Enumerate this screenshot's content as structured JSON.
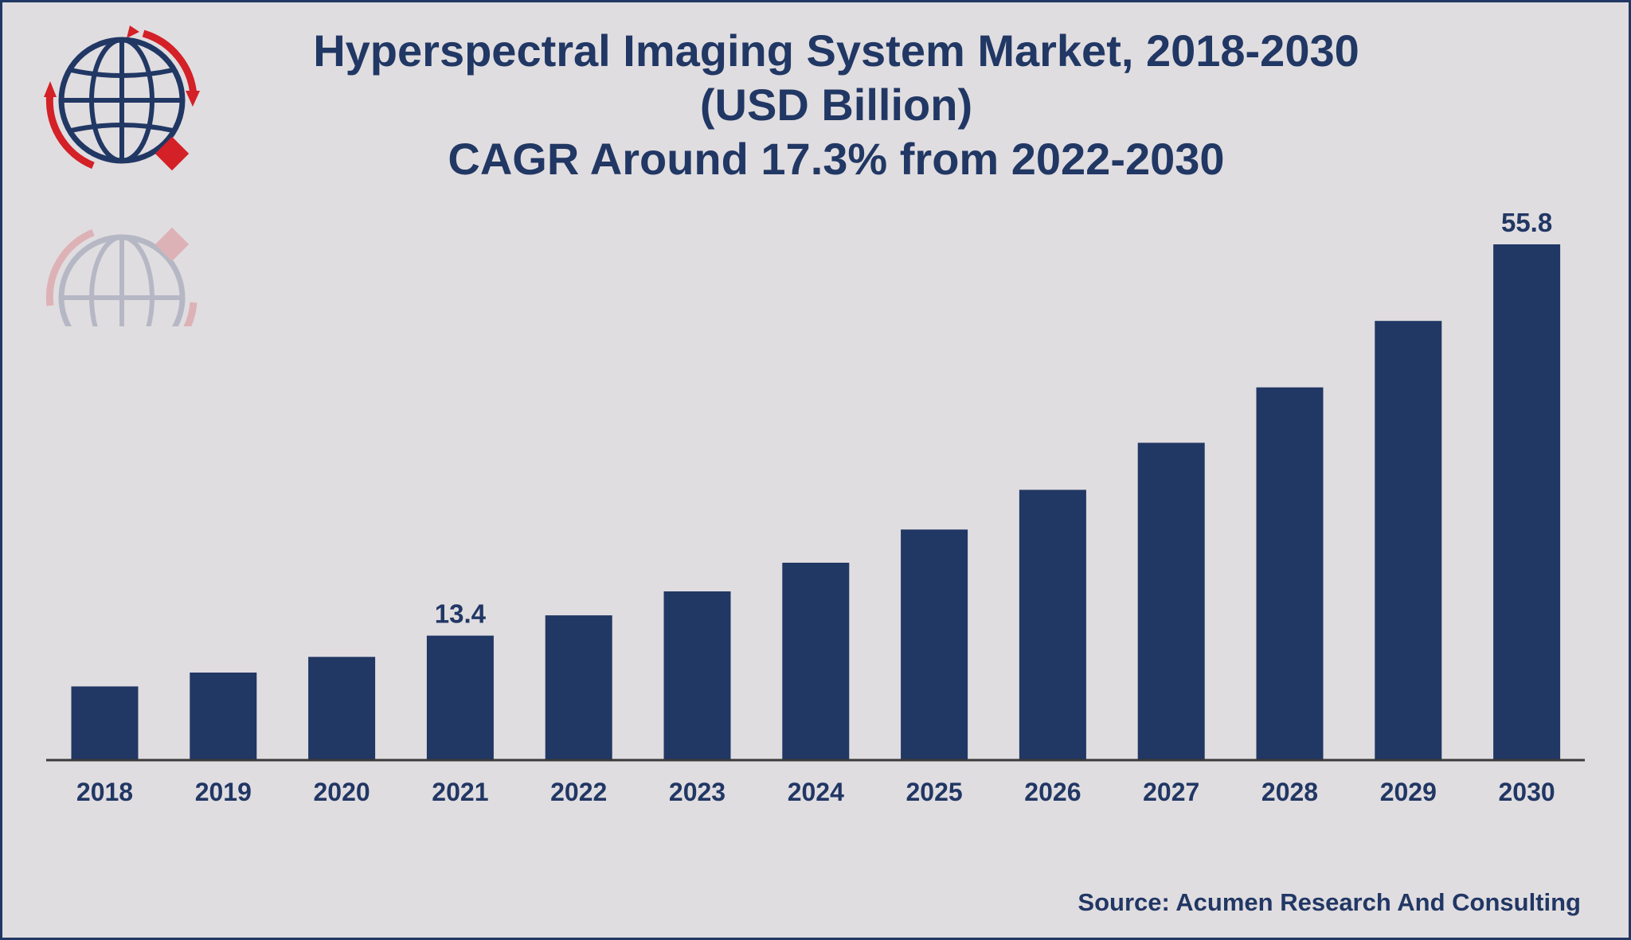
{
  "title_lines": [
    "Hyperspectral Imaging System Market, 2018-2030",
    "(USD Billion)",
    "CAGR Around 17.3% from 2022-2030"
  ],
  "source": "Source: Acumen Research And Consulting",
  "colors": {
    "bar": "#213764",
    "background": "#e0dde0",
    "text": "#213764",
    "logo_red": "#d42027",
    "axis": "#3a3a3a"
  },
  "logo": {
    "icon": "globe-with-arrows-icon"
  },
  "chart_data": {
    "type": "bar",
    "categories": [
      "2018",
      "2019",
      "2020",
      "2021",
      "2022",
      "2023",
      "2024",
      "2025",
      "2026",
      "2027",
      "2028",
      "2029",
      "2030"
    ],
    "values": [
      7.9,
      9.4,
      11.1,
      13.4,
      15.6,
      18.2,
      21.3,
      24.9,
      29.2,
      34.3,
      40.3,
      47.5,
      55.8
    ],
    "data_labels": [
      {
        "category": "2021",
        "text": "13.4"
      },
      {
        "category": "2030",
        "text": "55.8"
      }
    ],
    "title": "Hyperspectral Imaging System Market, 2018-2030 (USD Billion)",
    "xlabel": "",
    "ylabel": "",
    "ylim": [
      0,
      55.8
    ],
    "grid": false,
    "legend": "none"
  }
}
